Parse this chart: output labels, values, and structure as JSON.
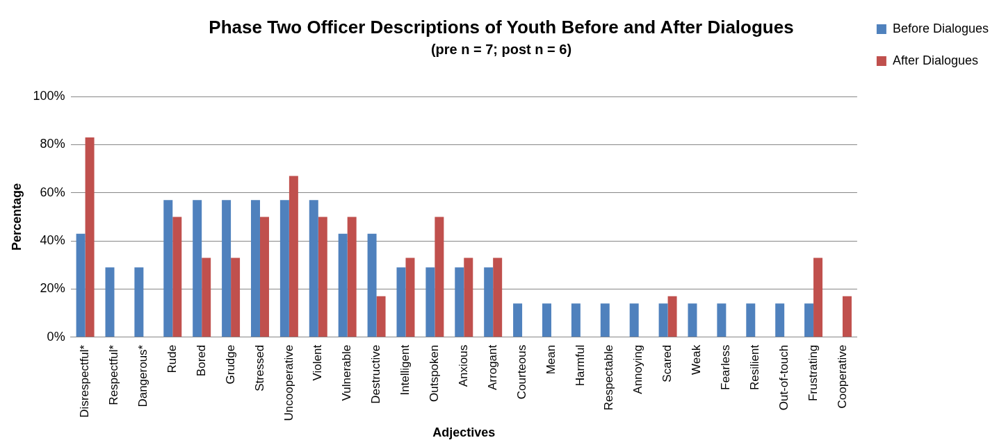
{
  "chart_data": {
    "type": "bar",
    "title": "Phase Two Officer Descriptions of Youth Before and After Dialogues",
    "subtitle": "(pre n = 7; post n = 6)",
    "xlabel": "Adjectives",
    "ylabel": "Percentage",
    "categories": [
      "Disrespectful*",
      "Respectful*",
      "Dangerous*",
      "Rude",
      "Bored",
      "Grudge",
      "Stressed",
      "Uncooperative",
      "Violent",
      "Vulnerable",
      "Destructive",
      "Intelligent",
      "Outspoken",
      "Anxious",
      "Arrogant",
      "Courteous",
      "Mean",
      "Harmful",
      "Respectable",
      "Annoying",
      "Scared",
      "Weak",
      "Fearless",
      "Resilient",
      "Out-of-touch",
      "Frustrating",
      "Cooperative"
    ],
    "series": [
      {
        "name": "Before Dialogues",
        "color": "#4f81bd",
        "values": [
          43,
          29,
          29,
          57,
          57,
          57,
          57,
          57,
          57,
          43,
          43,
          29,
          29,
          29,
          29,
          14,
          14,
          14,
          14,
          14,
          14,
          14,
          14,
          14,
          14,
          14,
          0
        ]
      },
      {
        "name": "After Dialogues",
        "color": "#c0504d",
        "values": [
          83,
          0,
          0,
          50,
          33,
          33,
          50,
          67,
          50,
          50,
          17,
          33,
          50,
          33,
          33,
          0,
          0,
          0,
          0,
          0,
          17,
          0,
          0,
          0,
          0,
          33,
          17
        ]
      }
    ],
    "ylim": [
      0,
      100
    ],
    "yticks": [
      {
        "value": 0,
        "label": "0%"
      },
      {
        "value": 20,
        "label": "20%"
      },
      {
        "value": 40,
        "label": "40%"
      },
      {
        "value": 60,
        "label": "60%"
      },
      {
        "value": 80,
        "label": "80%"
      },
      {
        "value": 100,
        "label": "100%"
      }
    ],
    "grid": "y",
    "legend": "right"
  }
}
